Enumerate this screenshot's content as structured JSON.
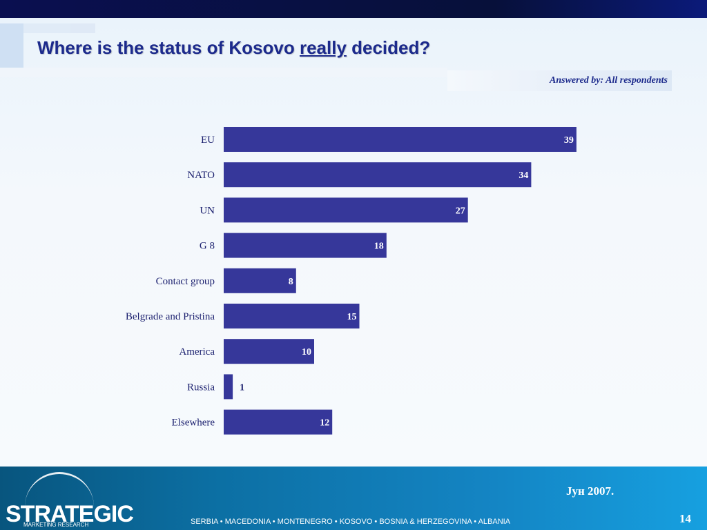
{
  "slide": {
    "title_before": "Where is the status of Kosovo ",
    "title_emph": "really",
    "title_after": " decided?",
    "subtitle": "Answered by: All respondents"
  },
  "footer": {
    "logo_text": "STRATEGIC",
    "logo_sub": "MARKETING RESEARCH",
    "date": "Јун 2007.",
    "countries": "SERBIA  •  MACEDONIA  •  MONTENEGRO  •  KOSOVO  •  BOSNIA & HERZEGOVINA  •  ALBANIA",
    "page_number": "14"
  },
  "chart_data": {
    "type": "bar",
    "orientation": "horizontal",
    "categories": [
      "EU",
      "NATO",
      "UN",
      "G 8",
      "Contact group",
      "Belgrade and Pristina",
      "America",
      "Russia",
      "Elsewhere"
    ],
    "values": [
      39,
      34,
      27,
      18,
      8,
      15,
      10,
      1,
      12
    ],
    "xlim": [
      0,
      40
    ],
    "grid": false,
    "bar_color": "#36379a"
  }
}
